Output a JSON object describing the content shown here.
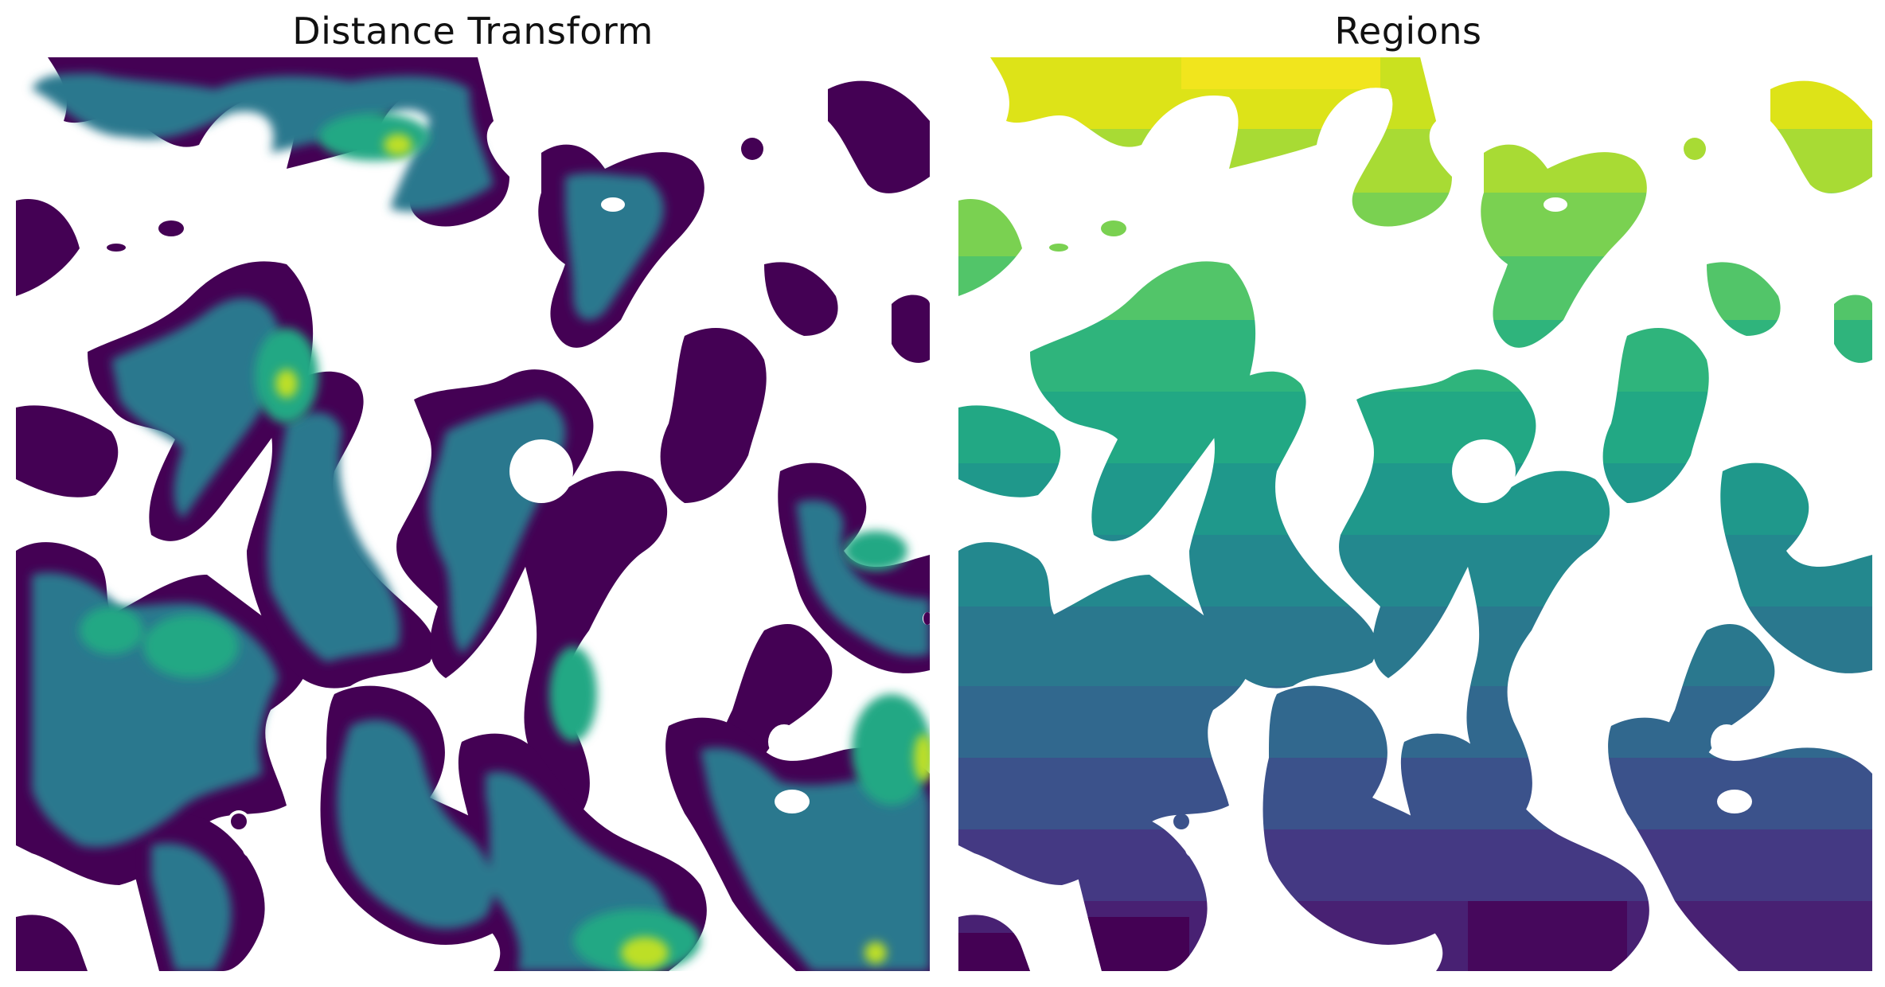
{
  "figure": {
    "panels": [
      {
        "title": "Distance Transform",
        "colormap": "viridis"
      },
      {
        "title": "Regions",
        "colormap": "viridis"
      }
    ],
    "colors": {
      "background": "#ffffff",
      "viridis_low": "#440154",
      "viridis_mid": "#21918c",
      "viridis_high": "#fde725"
    }
  }
}
